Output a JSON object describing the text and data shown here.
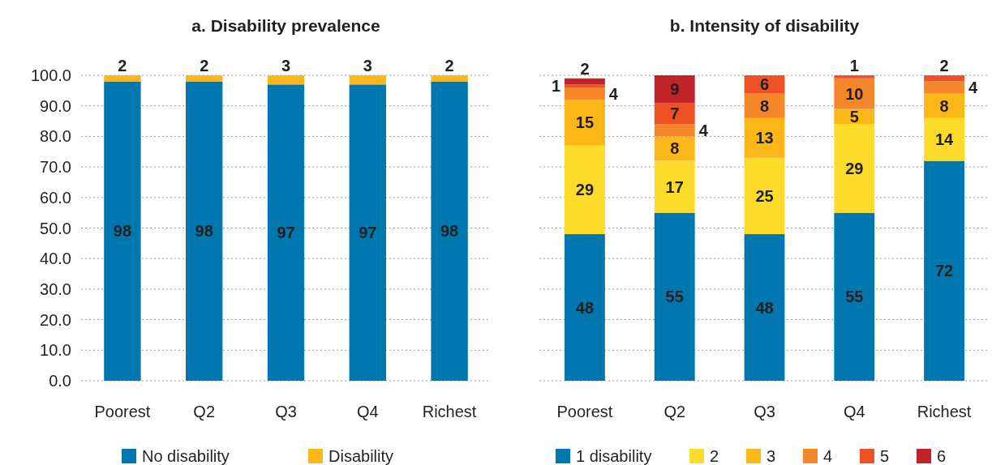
{
  "chart_data": [
    {
      "type": "bar",
      "title": "a. Disability prevalence",
      "stacked": true,
      "categories": [
        "Poorest",
        "Q2",
        "Q3",
        "Q4",
        "Richest"
      ],
      "series": [
        {
          "name": "No disability",
          "color": "#0077ae",
          "values": [
            98,
            98,
            97,
            97,
            98
          ]
        },
        {
          "name": "Disability",
          "color": "#fbb617",
          "values": [
            2,
            2,
            3,
            3,
            2
          ]
        }
      ],
      "ylim": [
        0,
        100
      ],
      "yticks": [
        {
          "value": 0,
          "label": "0.0"
        },
        {
          "value": 10,
          "label": "10.0"
        },
        {
          "value": 20,
          "label": "20.0"
        },
        {
          "value": 30,
          "label": "30.0"
        },
        {
          "value": 40,
          "label": "40.0"
        },
        {
          "value": 50,
          "label": "50.0"
        },
        {
          "value": 60,
          "label": "60.0"
        },
        {
          "value": 70,
          "label": "70.0"
        },
        {
          "value": 80,
          "label": "80.0"
        },
        {
          "value": 90,
          "label": "90.0"
        },
        {
          "value": 100,
          "label": "100.0"
        }
      ],
      "grid": "y",
      "legend": "bottom",
      "data_labels": true
    },
    {
      "type": "bar",
      "title": "b. Intensity of disability",
      "stacked": true,
      "categories": [
        "Poorest",
        "Q2",
        "Q3",
        "Q4",
        "Richest"
      ],
      "series": [
        {
          "name": "1 disability",
          "color": "#0077ae",
          "values": [
            48,
            55,
            48,
            55,
            72
          ]
        },
        {
          "name": "2",
          "color": "#fddb2a",
          "values": [
            29,
            17,
            25,
            29,
            14
          ]
        },
        {
          "name": "3",
          "color": "#fbb617",
          "values": [
            15,
            8,
            13,
            5,
            8
          ]
        },
        {
          "name": "4",
          "color": "#f5862a",
          "values": [
            4,
            4,
            8,
            10,
            4
          ]
        },
        {
          "name": "5",
          "color": "#ee5124",
          "values": [
            1,
            7,
            6,
            1,
            2
          ]
        },
        {
          "name": "6",
          "color": "#c1232a",
          "values": [
            2,
            9,
            null,
            null,
            null
          ]
        }
      ],
      "ylim": [
        0,
        100
      ],
      "yticks": [
        0,
        10,
        20,
        30,
        40,
        50,
        60,
        70,
        80,
        90,
        100
      ],
      "tick_labels": "x",
      "grid": "y",
      "legend": "bottom",
      "data_labels": true
    }
  ]
}
